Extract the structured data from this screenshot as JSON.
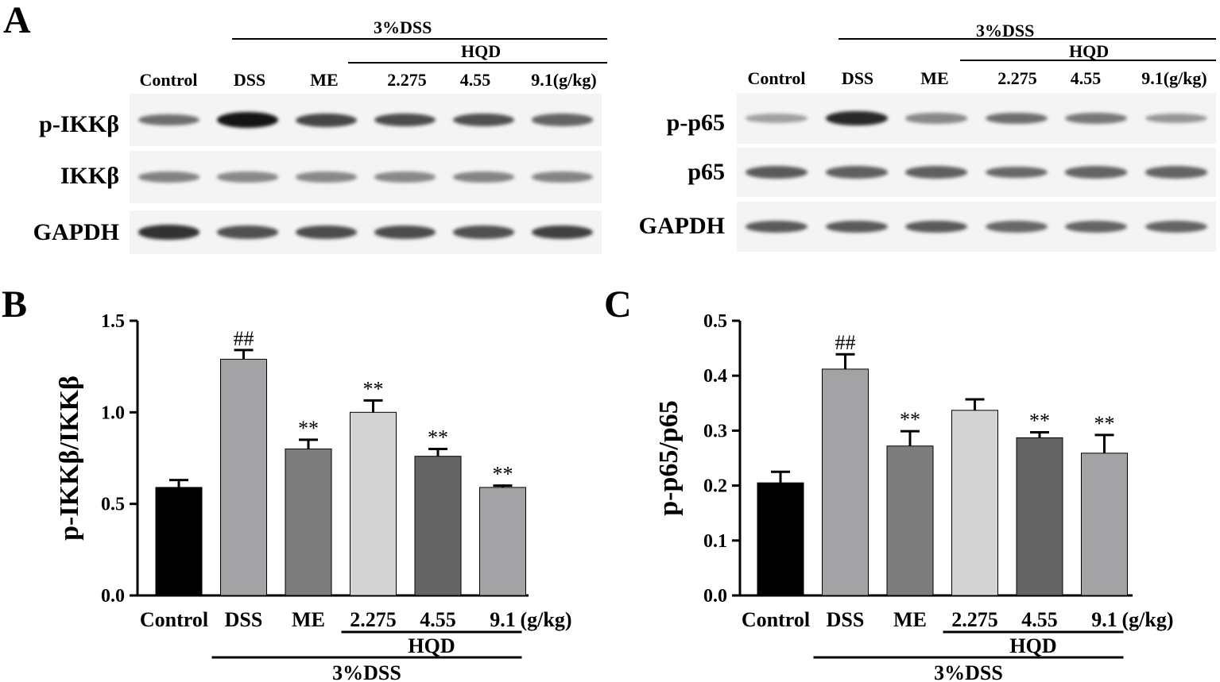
{
  "panels": {
    "a": "A",
    "b": "B",
    "c": "C"
  },
  "western_blots": [
    {
      "group_label": "3%DSS",
      "sub_label": "HQD",
      "lanes": [
        "Control",
        "DSS",
        "ME",
        "2.275",
        "4.55",
        "9.1(g/kg)"
      ],
      "rows": [
        "p-IKKβ",
        "IKKβ",
        "GAPDH"
      ]
    },
    {
      "group_label": "3%DSS",
      "sub_label": "HQD",
      "lanes": [
        "Control",
        "DSS",
        "ME",
        "2.275",
        "4.55",
        "9.1(g/kg)"
      ],
      "rows": [
        "p-p65",
        "p65",
        "GAPDH"
      ]
    }
  ],
  "band_intensity": [
    [
      [
        0.55,
        1.0,
        0.75,
        0.72,
        0.7,
        0.6
      ],
      [
        0.45,
        0.42,
        0.42,
        0.42,
        0.44,
        0.44
      ],
      [
        0.85,
        0.7,
        0.72,
        0.72,
        0.7,
        0.78
      ]
    ],
    [
      [
        0.3,
        0.9,
        0.42,
        0.55,
        0.5,
        0.35
      ],
      [
        0.65,
        0.62,
        0.62,
        0.58,
        0.6,
        0.6
      ],
      [
        0.65,
        0.65,
        0.65,
        0.58,
        0.6,
        0.6
      ]
    ]
  ],
  "chart_data": [
    {
      "type": "bar",
      "categories": [
        "Control",
        "DSS",
        "ME",
        "2.275",
        "4.55",
        "9.1"
      ],
      "unit_label": "(g/kg)",
      "ylabel": "p-IKKβ/IKKβ",
      "ylim": [
        0,
        1.5
      ],
      "yticks": [
        "0.0",
        "0.5",
        "1.0",
        "1.5"
      ],
      "values": [
        0.59,
        1.29,
        0.8,
        1.0,
        0.76,
        0.59
      ],
      "errors": [
        0.04,
        0.05,
        0.05,
        0.065,
        0.04,
        0.01
      ],
      "annotations": [
        "",
        "##",
        "**",
        "**",
        "**",
        "**"
      ],
      "colors": [
        "#000000",
        "#a3a3a6",
        "#7d7d7d",
        "#d3d3d3",
        "#646464",
        "#a3a3a6"
      ],
      "hqd_label": "HQD",
      "group_label": "3%DSS"
    },
    {
      "type": "bar",
      "categories": [
        "Control",
        "DSS",
        "ME",
        "2.275",
        "4.55",
        "9.1"
      ],
      "unit_label": "(g/kg)",
      "ylabel": "p-p65/p65",
      "ylim": [
        0,
        0.5
      ],
      "yticks": [
        "0.0",
        "0.1",
        "0.2",
        "0.3",
        "0.4",
        "0.5"
      ],
      "values": [
        0.205,
        0.412,
        0.272,
        0.337,
        0.287,
        0.259
      ],
      "errors": [
        0.02,
        0.027,
        0.027,
        0.02,
        0.01,
        0.033
      ],
      "annotations": [
        "",
        "##",
        "**",
        "",
        "**",
        "**"
      ],
      "colors": [
        "#000000",
        "#a3a3a6",
        "#7d7d7d",
        "#d3d3d3",
        "#646464",
        "#a3a3a6"
      ],
      "hqd_label": "HQD",
      "group_label": "3%DSS"
    }
  ]
}
